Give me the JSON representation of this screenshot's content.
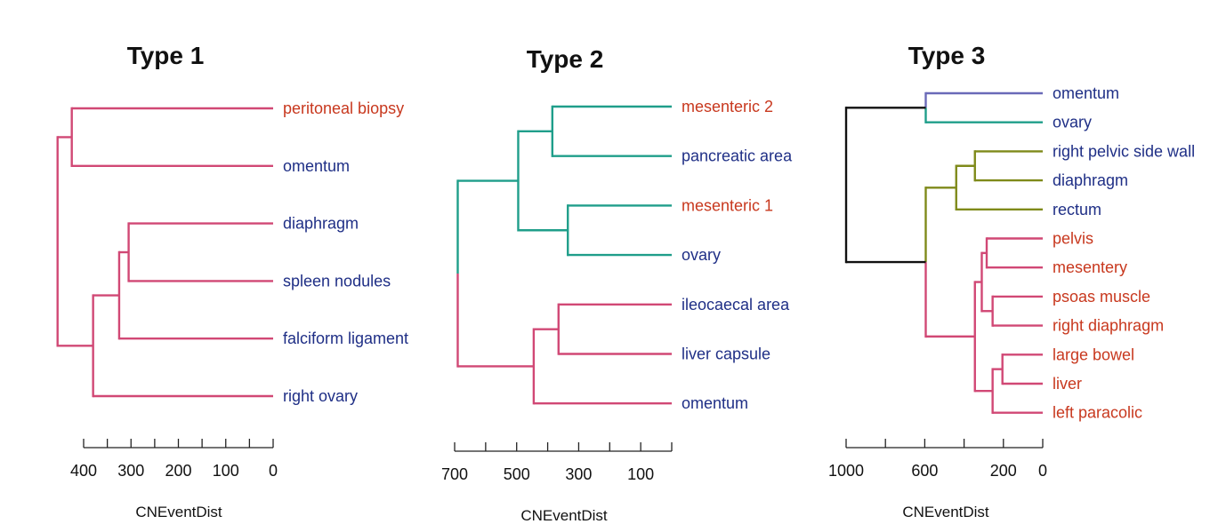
{
  "chart_data": [
    {
      "type": "dendrogram",
      "title": "Type 1",
      "xlabel": "CNEventDist",
      "axis": {
        "range": [
          0,
          400
        ],
        "minor_ticks": [
          400,
          350,
          300,
          250,
          200,
          150,
          100,
          50,
          0
        ],
        "labels": [
          {
            "value": 400,
            "text": "400"
          },
          {
            "value": 300,
            "text": "300"
          },
          {
            "value": 200,
            "text": "200"
          },
          {
            "value": 100,
            "text": "100"
          },
          {
            "value": 0,
            "text": "0"
          }
        ]
      },
      "leaves": [
        {
          "label": "peritoneal biopsy",
          "color": "#c8381e"
        },
        {
          "label": "omentum",
          "color": "#1f2f86"
        },
        {
          "label": "diaphragm",
          "color": "#1f2f86"
        },
        {
          "label": "spleen nodules",
          "color": "#1f2f86"
        },
        {
          "label": "falciform ligament",
          "color": "#1f2f86"
        },
        {
          "label": "right ovary",
          "color": "#1f2f86"
        }
      ],
      "merges": [
        {
          "id": "a",
          "children": [
            0,
            1
          ],
          "height": 425,
          "color": "#d14875"
        },
        {
          "id": "b",
          "children": [
            2,
            3
          ],
          "height": 305,
          "color": "#d14875"
        },
        {
          "id": "c",
          "children": [
            "b",
            4
          ],
          "height": 325,
          "color": "#d14875"
        },
        {
          "id": "d",
          "children": [
            "c",
            5
          ],
          "height": 380,
          "color": "#d14875"
        },
        {
          "id": "root",
          "children": [
            "a",
            "d"
          ],
          "height": 455,
          "color": "#d14875"
        }
      ]
    },
    {
      "type": "dendrogram",
      "title": "Type 2",
      "xlabel": "CNEventDist",
      "axis": {
        "range": [
          0,
          700
        ],
        "minor_ticks": [
          700,
          600,
          500,
          400,
          300,
          200,
          100,
          0
        ],
        "labels": [
          {
            "value": 700,
            "text": "700"
          },
          {
            "value": 500,
            "text": "500"
          },
          {
            "value": 300,
            "text": "300"
          },
          {
            "value": 100,
            "text": "100"
          }
        ]
      },
      "leaves": [
        {
          "label": "mesenteric 2",
          "color": "#c8381e"
        },
        {
          "label": "pancreatic area",
          "color": "#1f2f86"
        },
        {
          "label": "mesenteric 1",
          "color": "#c8381e"
        },
        {
          "label": "ovary",
          "color": "#1f2f86"
        },
        {
          "label": "ileocaecal area",
          "color": "#1f2f86"
        },
        {
          "label": "liver capsule",
          "color": "#1f2f86"
        },
        {
          "label": "omentum",
          "color": "#1f2f86"
        }
      ],
      "merges": [
        {
          "id": "a",
          "children": [
            0,
            1
          ],
          "height": 385,
          "color": "#1f9e8a"
        },
        {
          "id": "b",
          "children": [
            2,
            3
          ],
          "height": 335,
          "color": "#1f9e8a"
        },
        {
          "id": "c",
          "children": [
            "a",
            "b"
          ],
          "height": 495,
          "color": "#1f9e8a"
        },
        {
          "id": "d",
          "children": [
            4,
            5
          ],
          "height": 365,
          "color": "#d14875"
        },
        {
          "id": "e",
          "children": [
            "d",
            6
          ],
          "height": 445,
          "color": "#d14875"
        },
        {
          "id": "root",
          "children": [
            "c",
            "e"
          ],
          "height": 690,
          "color_top": "#1f9e8a",
          "color_bottom": "#d14875"
        }
      ]
    },
    {
      "type": "dendrogram",
      "title": "Type 3",
      "xlabel": "CNEventDist",
      "axis": {
        "range": [
          0,
          1000
        ],
        "minor_ticks": [
          1000,
          800,
          600,
          400,
          200,
          0
        ],
        "labels": [
          {
            "value": 1000,
            "text": "1000"
          },
          {
            "value": 600,
            "text": "600"
          },
          {
            "value": 200,
            "text": "200"
          },
          {
            "value": 0,
            "text": "0"
          }
        ]
      },
      "leaves": [
        {
          "label": "omentum",
          "color": "#1f2f86"
        },
        {
          "label": "ovary",
          "color": "#1f2f86"
        },
        {
          "label": "right pelvic side wall",
          "color": "#1f2f86"
        },
        {
          "label": "diaphragm",
          "color": "#1f2f86"
        },
        {
          "label": "rectum",
          "color": "#1f2f86"
        },
        {
          "label": "pelvis",
          "color": "#c8381e"
        },
        {
          "label": "mesentery",
          "color": "#c8381e"
        },
        {
          "label": "psoas muscle",
          "color": "#c8381e"
        },
        {
          "label": "right diaphragm",
          "color": "#c8381e"
        },
        {
          "label": "large bowel",
          "color": "#c8381e"
        },
        {
          "label": "liver",
          "color": "#c8381e"
        },
        {
          "label": "left paracolic",
          "color": "#c8381e"
        }
      ],
      "merges": [
        {
          "id": "a",
          "children": [
            0,
            1
          ],
          "height": 595,
          "color_top": "#6a6ab8",
          "color_bottom": "#1f9e8a"
        },
        {
          "id": "b",
          "children": [
            2,
            3
          ],
          "height": 345,
          "color": "#7f8a1a"
        },
        {
          "id": "c",
          "children": [
            "b",
            4
          ],
          "height": 440,
          "color": "#7f8a1a"
        },
        {
          "id": "d",
          "children": [
            5,
            6
          ],
          "height": 285,
          "color": "#d14875"
        },
        {
          "id": "e",
          "children": [
            7,
            8
          ],
          "height": 255,
          "color": "#d14875"
        },
        {
          "id": "f",
          "children": [
            "d",
            "e"
          ],
          "height": 310,
          "color": "#d14875"
        },
        {
          "id": "g",
          "children": [
            9,
            10
          ],
          "height": 205,
          "color": "#d14875"
        },
        {
          "id": "h",
          "children": [
            "g",
            11
          ],
          "height": 255,
          "color": "#d14875"
        },
        {
          "id": "i",
          "children": [
            "f",
            "h"
          ],
          "height": 345,
          "color": "#d14875"
        },
        {
          "id": "j",
          "children": [
            "c",
            "i"
          ],
          "height": 595,
          "color_top": "#7f8a1a",
          "color_bottom": "#d14875"
        },
        {
          "id": "root",
          "children": [
            "a",
            "j"
          ],
          "height": 1000,
          "color": "#111111"
        }
      ]
    }
  ]
}
